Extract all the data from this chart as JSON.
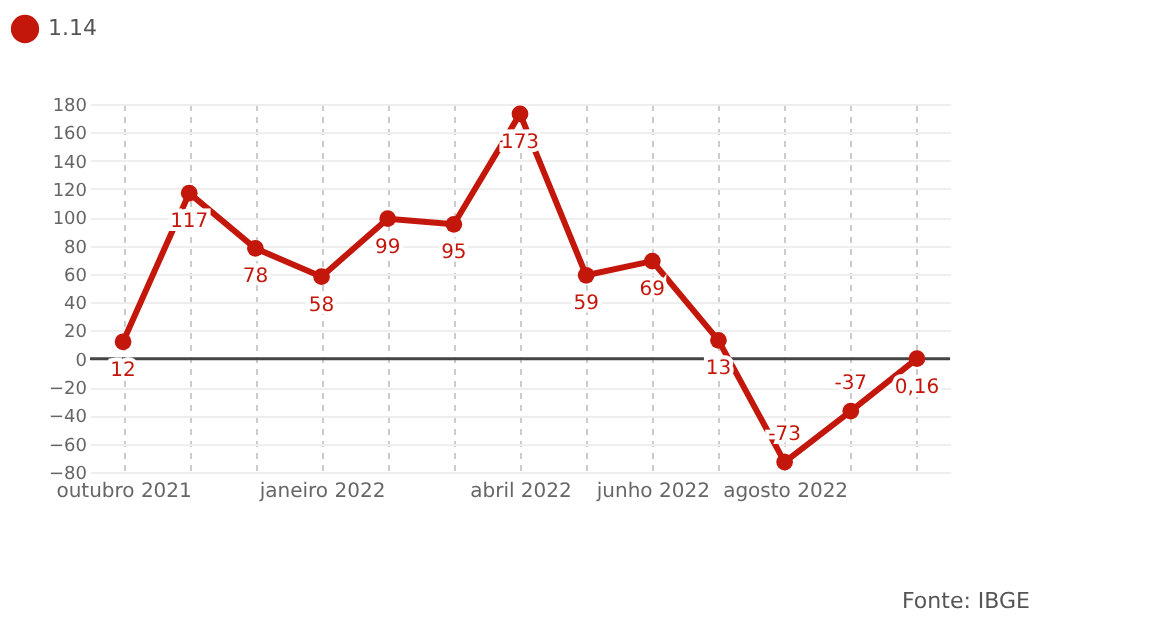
{
  "chart_data": {
    "type": "line",
    "categories": [
      "outubro 2021",
      null,
      null,
      "janeiro 2022",
      null,
      null,
      "abril 2022",
      null,
      "junho 2022",
      null,
      "agosto 2022",
      null,
      null
    ],
    "series": [
      {
        "name": "1.14",
        "color": "#c4170c",
        "values": [
          12,
          117,
          78,
          58,
          99,
          95,
          173,
          59,
          69,
          13,
          -73,
          -37,
          0.16
        ],
        "value_labels": [
          "12",
          "117",
          "78",
          "58",
          "99",
          "95",
          "173",
          "59",
          "69",
          "13",
          "-73",
          "-37",
          "0,16"
        ]
      }
    ],
    "ylim": [
      -80,
      180
    ],
    "yticks": [
      -80,
      -60,
      -40,
      -20,
      0,
      20,
      40,
      60,
      80,
      100,
      120,
      140,
      160,
      180
    ],
    "grid": true,
    "legend": "top left",
    "marker": "circle",
    "line_style": "solid",
    "ref_lines": [
      {
        "axis": "y",
        "value": 0,
        "color": "#444444"
      }
    ],
    "annotations": [
      "Fonte: IBGE"
    ]
  }
}
